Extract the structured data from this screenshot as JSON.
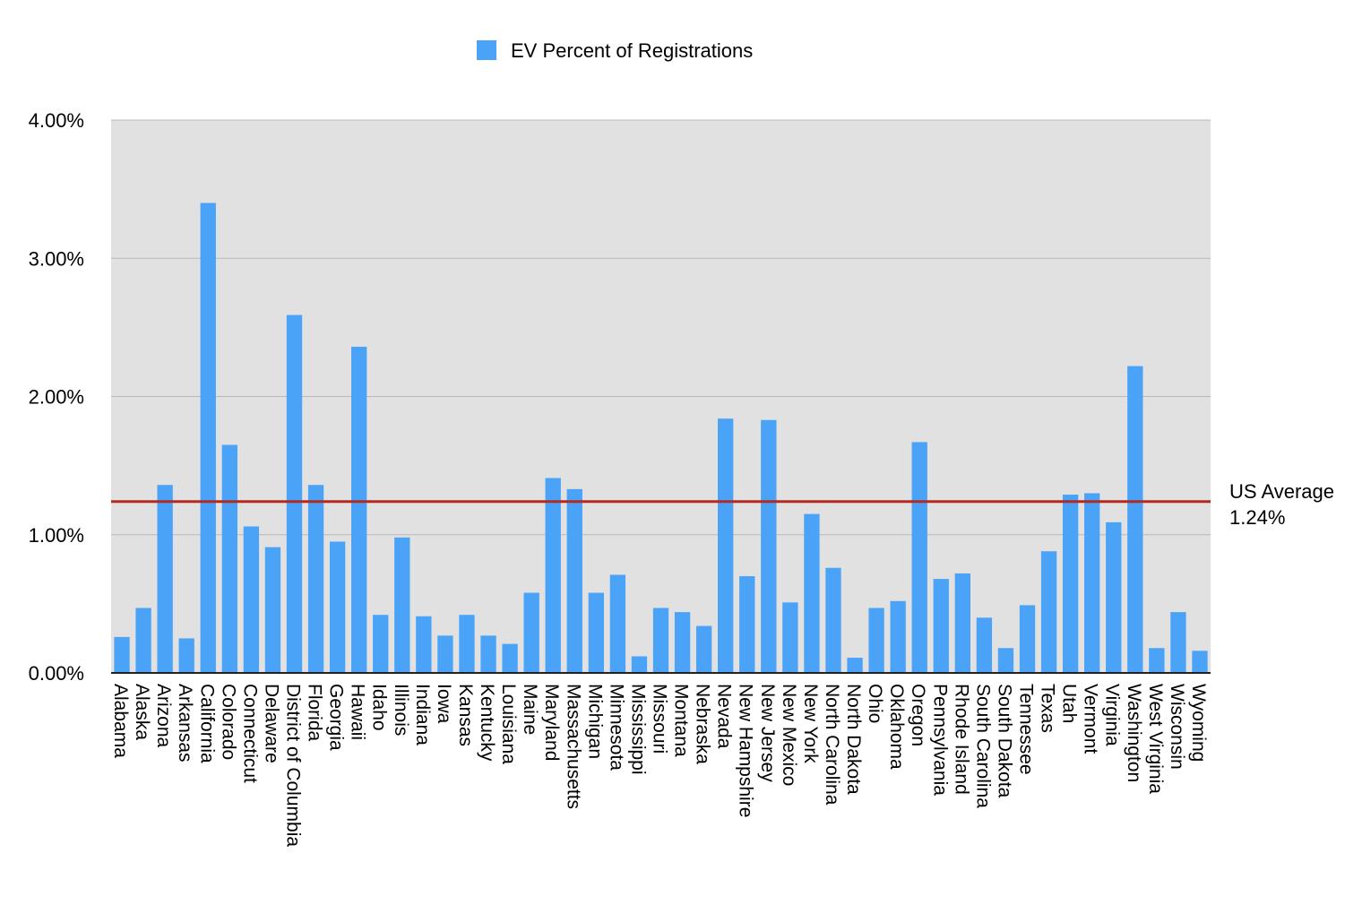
{
  "chart_data": {
    "type": "bar",
    "legend": {
      "label": "EV Percent of Registrations",
      "color": "#4aa3f7",
      "position": "top-center"
    },
    "categories": [
      "Alabama",
      "Alaska",
      "Arizona",
      "Arkansas",
      "California",
      "Colorado",
      "Connecticut",
      "Delaware",
      "District of Columbia",
      "Florida",
      "Georgia",
      "Hawaii",
      "Idaho",
      "Illinois",
      "Indiana",
      "Iowa",
      "Kansas",
      "Kentucky",
      "Louisiana",
      "Maine",
      "Maryland",
      "Massachusetts",
      "Michigan",
      "Minnesota",
      "Mississippi",
      "Missouri",
      "Montana",
      "Nebraska",
      "Nevada",
      "New Hampshire",
      "New Jersey",
      "New Mexico",
      "New York",
      "North Carolina",
      "North Dakota",
      "Ohio",
      "Oklahoma",
      "Oregon",
      "Pennsylvania",
      "Rhode Island",
      "South Carolina",
      "South Dakota",
      "Tennessee",
      "Texas",
      "Utah",
      "Vermont",
      "Virginia",
      "Washington",
      "West Virginia",
      "Wisconsin",
      "Wyoming"
    ],
    "series": [
      {
        "name": "EV Percent of Registrations",
        "values": [
          0.26,
          0.47,
          1.36,
          0.25,
          3.4,
          1.65,
          1.06,
          0.91,
          2.59,
          1.36,
          0.95,
          2.36,
          0.42,
          0.98,
          0.41,
          0.27,
          0.42,
          0.27,
          0.21,
          0.58,
          1.41,
          1.33,
          0.58,
          0.71,
          0.12,
          0.47,
          0.44,
          0.34,
          1.84,
          0.7,
          1.83,
          0.51,
          1.15,
          0.76,
          0.11,
          0.47,
          0.52,
          1.67,
          0.68,
          0.72,
          0.4,
          0.18,
          0.49,
          0.88,
          1.29,
          1.3,
          1.09,
          2.22,
          0.18,
          0.44,
          0.16
        ]
      }
    ],
    "ylim": [
      0,
      4
    ],
    "yticks": [
      "0.00%",
      "1.00%",
      "2.00%",
      "3.00%",
      "4.00%"
    ],
    "grid": true,
    "plot_background": "#e1e1e1",
    "reference_line": {
      "value": 1.24,
      "label_line1": "US Average",
      "label_line2": "1.24%",
      "color": "#b22a22"
    },
    "xlabel": "",
    "ylabel": "",
    "title": ""
  }
}
